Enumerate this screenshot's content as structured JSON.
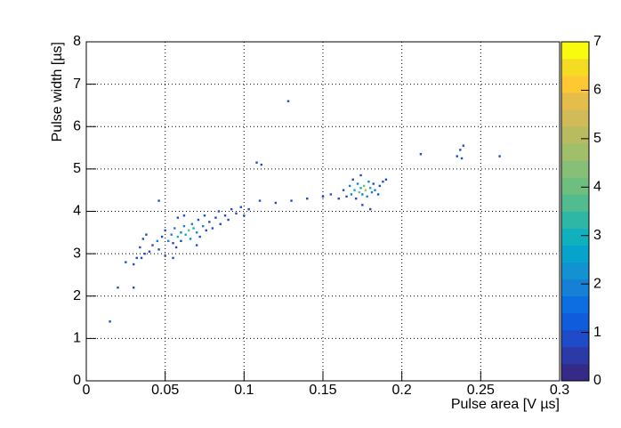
{
  "chart_data": {
    "type": "hist2d",
    "xlabel": "Pulse area [V µs]",
    "ylabel": "Pulse width [µs]",
    "xlim": [
      0,
      0.3
    ],
    "xticks": [
      0,
      0.05,
      0.1,
      0.15,
      0.2,
      0.25,
      0.3
    ],
    "ylim": [
      0,
      8
    ],
    "yticks": [
      0,
      1,
      2,
      3,
      4,
      5,
      6,
      7,
      8
    ],
    "zlim": [
      0,
      7
    ],
    "zticks": [
      0,
      1,
      2,
      3,
      4,
      5,
      6,
      7
    ],
    "grid": true,
    "colors": [
      "#352a87",
      "#2c3aa8",
      "#1f4bc9",
      "#0f5cdd",
      "#0c6ee0",
      "#1481d6",
      "#1292d0",
      "#06a4ca",
      "#10b0bc",
      "#2eb7a4",
      "#52bc8f",
      "#6ebf7f",
      "#87bf77",
      "#a1be6a",
      "#b8bc5f",
      "#d1bb59",
      "#e4bd4a",
      "#fec832",
      "#f5dc22",
      "#f9fb0e"
    ],
    "x": [
      0.015,
      0.02,
      0.03,
      0.025,
      0.03,
      0.032,
      0.035,
      0.037,
      0.034,
      0.04,
      0.036,
      0.038,
      0.042,
      0.045,
      0.046,
      0.048,
      0.05,
      0.052,
      0.054,
      0.055,
      0.056,
      0.058,
      0.06,
      0.06,
      0.062,
      0.063,
      0.065,
      0.066,
      0.067,
      0.068,
      0.07,
      0.071,
      0.072,
      0.074,
      0.075,
      0.076,
      0.078,
      0.08,
      0.082,
      0.084,
      0.085,
      0.088,
      0.09,
      0.092,
      0.095,
      0.098,
      0.1,
      0.103,
      0.046,
      0.05,
      0.057,
      0.055,
      0.07,
      0.062,
      0.058,
      0.108,
      0.111,
      0.128,
      0.11,
      0.12,
      0.13,
      0.14,
      0.15,
      0.155,
      0.16,
      0.163,
      0.165,
      0.167,
      0.168,
      0.17,
      0.171,
      0.172,
      0.173,
      0.174,
      0.175,
      0.176,
      0.177,
      0.178,
      0.179,
      0.18,
      0.181,
      0.182,
      0.183,
      0.185,
      0.186,
      0.188,
      0.19,
      0.175,
      0.18,
      0.169,
      0.174,
      0.212,
      0.235,
      0.237,
      0.239,
      0.238,
      0.262
    ],
    "y": [
      1.4,
      2.2,
      2.2,
      2.8,
      2.75,
      2.9,
      2.9,
      3.0,
      3.15,
      3.05,
      3.35,
      3.45,
      3.2,
      3.3,
      3.1,
      3.4,
      3.55,
      3.3,
      3.45,
      3.25,
      3.6,
      3.4,
      3.5,
      3.3,
      3.65,
      3.45,
      3.55,
      3.35,
      3.7,
      3.6,
      3.5,
      3.8,
      3.4,
      3.65,
      3.9,
      3.55,
      3.75,
      3.6,
      3.85,
      4.0,
      3.7,
      3.9,
      3.8,
      4.05,
      3.95,
      4.1,
      3.9,
      4.05,
      4.25,
      2.95,
      3.15,
      2.9,
      3.2,
      3.9,
      3.85,
      5.15,
      5.1,
      6.6,
      4.25,
      4.2,
      4.25,
      4.3,
      4.35,
      4.4,
      4.3,
      4.5,
      4.35,
      4.6,
      4.4,
      4.5,
      4.3,
      4.65,
      4.45,
      4.55,
      4.4,
      4.6,
      4.5,
      4.35,
      4.7,
      4.55,
      4.45,
      4.65,
      4.5,
      4.4,
      4.6,
      4.7,
      4.75,
      4.15,
      4.05,
      4.75,
      4.85,
      5.35,
      5.3,
      5.45,
      5.55,
      5.25,
      5.3
    ],
    "z": [
      1,
      1,
      1,
      1,
      1,
      1,
      1,
      1,
      1,
      1,
      1,
      1,
      1,
      2,
      1,
      1,
      1,
      2,
      2,
      1,
      2,
      3,
      2,
      1,
      2,
      3,
      4,
      2,
      2,
      3,
      2,
      1,
      1,
      2,
      1,
      1,
      1,
      1,
      1,
      1,
      1,
      1,
      1,
      1,
      1,
      1,
      1,
      1,
      1,
      1,
      1,
      1,
      1,
      1,
      1,
      1,
      1,
      1,
      1,
      1,
      1,
      1,
      1,
      1,
      1,
      1,
      1,
      2,
      2,
      3,
      1,
      2,
      4,
      3,
      2,
      4,
      5,
      2,
      2,
      3,
      2,
      1,
      2,
      1,
      1,
      1,
      1,
      1,
      1,
      1,
      1,
      1,
      1,
      1,
      1,
      1,
      1
    ]
  }
}
